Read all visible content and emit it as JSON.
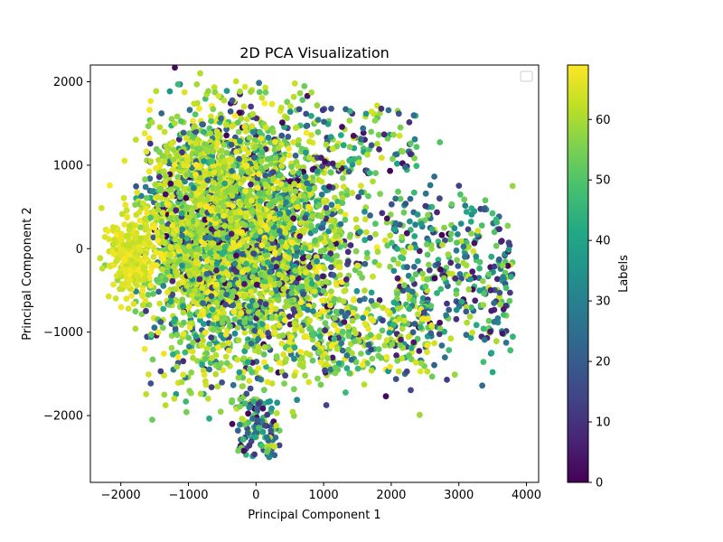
{
  "chart_data": {
    "type": "scatter",
    "title": "2D PCA Visualization",
    "xlabel": "Principal Component 1",
    "ylabel": "Principal Component 2",
    "xlim": [
      -2450,
      4180
    ],
    "ylim": [
      -2800,
      2200
    ],
    "x_ticks": [
      -2000,
      -1000,
      0,
      1000,
      2000,
      3000,
      4000
    ],
    "y_ticks": [
      -2000,
      -1000,
      0,
      1000,
      2000
    ],
    "x_tick_labels": [
      "−2000",
      "−1000",
      "0",
      "1000",
      "2000",
      "3000",
      "4000"
    ],
    "y_tick_labels": [
      "−2000",
      "−1000",
      "0",
      "1000",
      "2000"
    ],
    "grid": false,
    "legend": {
      "placement": "top-right",
      "entries": []
    },
    "colormap": "viridis",
    "colorbar": {
      "label": "Labels",
      "min": 0,
      "max": 69,
      "ticks": [
        0,
        10,
        20,
        30,
        40,
        50,
        60
      ],
      "tick_labels": [
        "0",
        "10",
        "20",
        "30",
        "40",
        "50",
        "60"
      ]
    },
    "point_count": 5000,
    "distribution": {
      "core_region": {
        "x_range": [
          -1500,
          1500
        ],
        "y_range": [
          -1700,
          1800
        ]
      },
      "left_dense_yellow_cluster": {
        "x": -1900,
        "y": -100,
        "label_range": [
          62,
          69
        ]
      },
      "right_sparse_tail": {
        "x_range": [
          2000,
          3900
        ],
        "y_range": [
          -1500,
          900
        ],
        "label_range": [
          0,
          55
        ]
      },
      "bottom_tail": {
        "x_range": [
          -400,
          400
        ],
        "y_range": [
          -2600,
          -1800
        ]
      }
    },
    "point_color": "viridis-by-label"
  }
}
